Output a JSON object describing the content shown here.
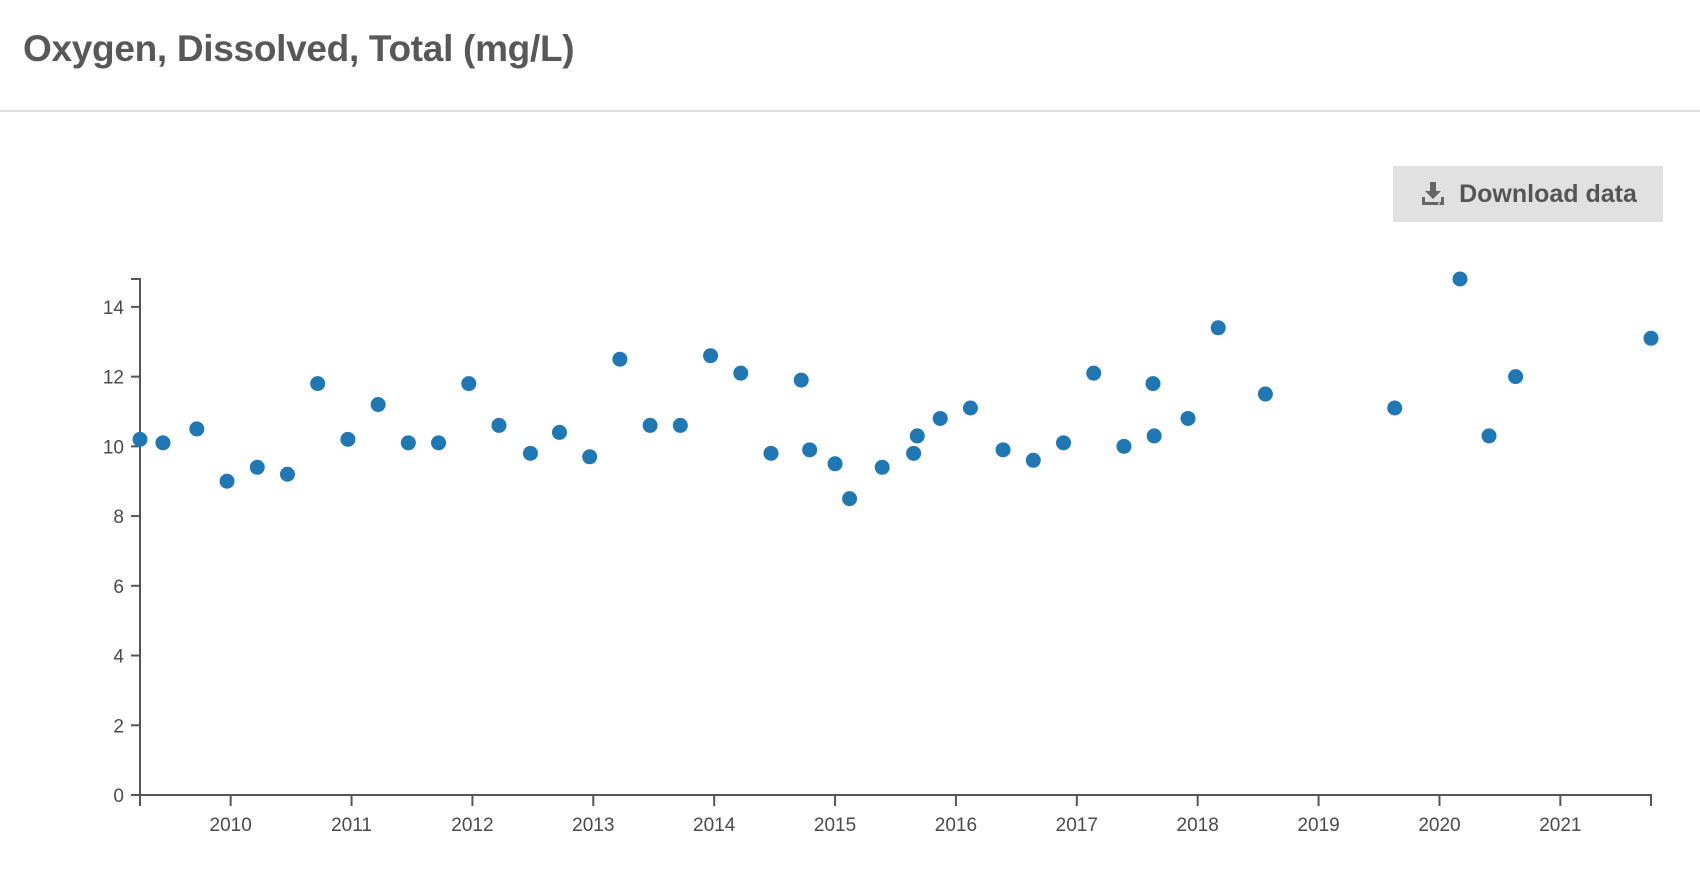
{
  "header": {
    "title": "Oxygen, Dissolved, Total (mg/L)"
  },
  "toolbar": {
    "download_label": "Download data",
    "download_icon": "download-icon"
  },
  "colors": {
    "point": "#1f77b4",
    "button_bg": "#e1e1e1",
    "text": "#555555"
  },
  "chart_data": {
    "type": "scatter",
    "title": "",
    "xlabel": "",
    "ylabel": "",
    "xlim": [
      2009.25,
      2021.75
    ],
    "ylim": [
      0,
      14.8
    ],
    "grid": false,
    "x_ticks": [
      2010,
      2011,
      2012,
      2013,
      2014,
      2015,
      2016,
      2017,
      2018,
      2019,
      2020,
      2021
    ],
    "y_ticks": [
      0,
      2,
      4,
      6,
      8,
      10,
      12,
      14
    ],
    "x": [
      2009.25,
      2009.44,
      2009.72,
      2009.97,
      2010.22,
      2010.47,
      2010.72,
      2010.97,
      2011.22,
      2011.47,
      2011.72,
      2011.97,
      2012.22,
      2012.48,
      2012.72,
      2012.97,
      2013.22,
      2013.47,
      2013.72,
      2013.97,
      2014.22,
      2014.47,
      2014.72,
      2014.79,
      2015.0,
      2015.12,
      2015.39,
      2015.65,
      2015.68,
      2015.87,
      2016.12,
      2016.39,
      2016.64,
      2016.89,
      2017.14,
      2017.39,
      2017.63,
      2017.64,
      2017.92,
      2018.17,
      2018.56,
      2019.63,
      2020.17,
      2020.41,
      2020.63,
      2021.75
    ],
    "y": [
      10.2,
      10.1,
      10.5,
      9.0,
      9.4,
      9.2,
      11.8,
      10.2,
      11.2,
      10.1,
      10.1,
      11.8,
      10.6,
      9.8,
      10.4,
      9.7,
      12.5,
      10.6,
      10.6,
      12.6,
      12.1,
      9.8,
      11.9,
      9.9,
      9.5,
      8.5,
      9.4,
      9.8,
      10.3,
      10.8,
      11.1,
      9.9,
      9.6,
      10.1,
      12.1,
      10.0,
      11.8,
      10.3,
      10.8,
      13.4,
      11.5,
      11.1,
      14.8,
      10.3,
      12.0,
      13.1
    ]
  }
}
